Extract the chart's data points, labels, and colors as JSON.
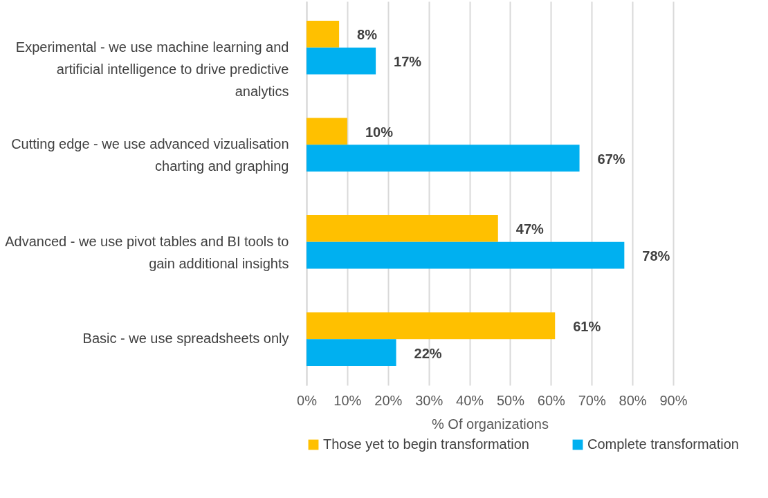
{
  "chart_data": {
    "type": "bar",
    "orientation": "horizontal",
    "xlabel": "% Of organizations",
    "categories": [
      "Experimental - we use machine learning and artificial intelligence to drive predictive analytics",
      "Cutting edge - we use advanced vizualisation charting and graphing",
      "Advanced - we use pivot tables and BI tools to gain additional insights",
      "Basic - we use spreadsheets only"
    ],
    "series": [
      {
        "name": "Those yet to begin transformation",
        "color": "#ffc000",
        "values": [
          8,
          10,
          47,
          61
        ],
        "value_labels": [
          "8%",
          "10%",
          "47%",
          "61%"
        ]
      },
      {
        "name": "Complete transformation",
        "color": "#00b0f0",
        "values": [
          17,
          67,
          78,
          22
        ],
        "value_labels": [
          "17%",
          "67%",
          "78%",
          "22%"
        ]
      }
    ],
    "xlim": [
      0,
      90
    ],
    "xticks": [
      {
        "value": 0,
        "label": "0%"
      },
      {
        "value": 10,
        "label": "10%"
      },
      {
        "value": 20,
        "label": "20%"
      },
      {
        "value": 30,
        "label": "30%"
      },
      {
        "value": 40,
        "label": "40%"
      },
      {
        "value": 50,
        "label": "50%"
      },
      {
        "value": 60,
        "label": "60%"
      },
      {
        "value": 70,
        "label": "70%"
      },
      {
        "value": 80,
        "label": "80%"
      },
      {
        "value": 90,
        "label": "90%"
      }
    ],
    "grid": "x",
    "legend": "bottom"
  }
}
